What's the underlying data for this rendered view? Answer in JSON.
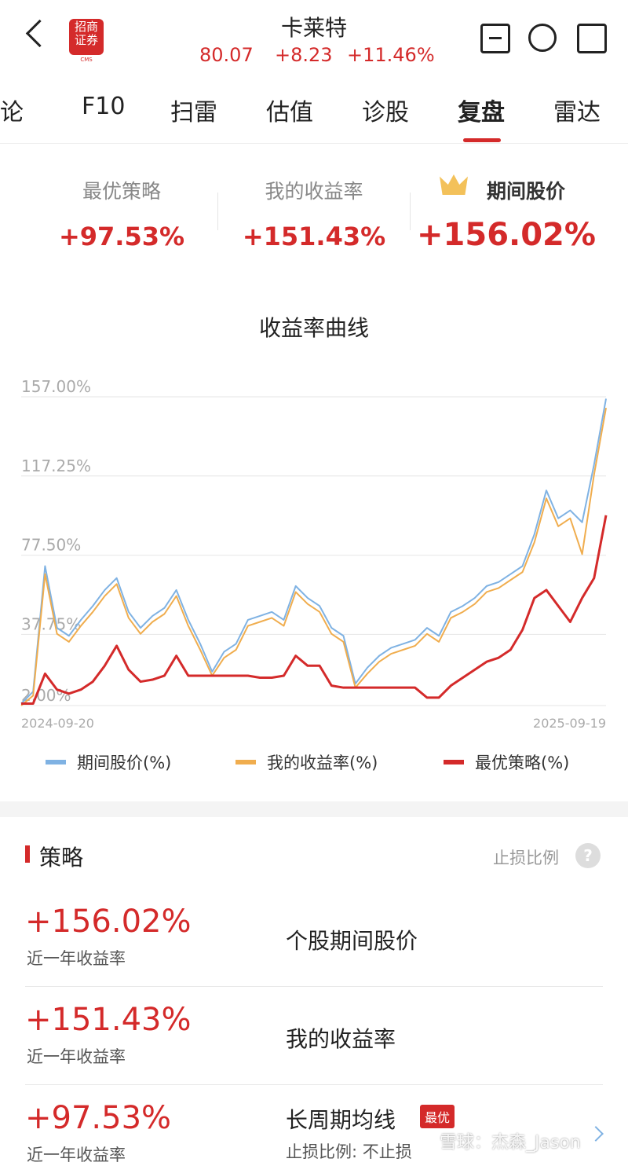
{
  "header": {
    "logo": "招商证券",
    "logo_sub": "CMS",
    "title": "卡莱特",
    "price": "80.07",
    "change": "+8.23",
    "change_pct": "+11.46%"
  },
  "tabs": [
    "讨论",
    "F10",
    "扫雷",
    "估值",
    "诊股",
    "复盘",
    "雷达"
  ],
  "summary": [
    {
      "label": "最优策略",
      "value": "+97.53%"
    },
    {
      "label": "我的收益率",
      "value": "+151.43%"
    },
    {
      "label": "期间股价",
      "value": "+156.02%"
    }
  ],
  "chart_data": {
    "type": "line",
    "title": "收益率曲线",
    "categories": [
      "2024-09-20",
      null,
      null,
      null,
      null,
      null,
      null,
      null,
      null,
      null,
      null,
      null,
      null,
      null,
      null,
      null,
      null,
      null,
      null,
      null,
      null,
      null,
      null,
      null,
      null,
      null,
      null,
      null,
      null,
      null,
      null,
      null,
      null,
      null,
      null,
      null,
      null,
      null,
      null,
      null,
      null,
      null,
      null,
      null,
      null,
      null,
      null,
      null,
      null,
      "2025-09-19"
    ],
    "series": [
      {
        "name": "期间股价(%)",
        "color": "#7fb2e3",
        "values": [
          3,
          9,
          72,
          41,
          37,
          45,
          52,
          60,
          66,
          49,
          41,
          47,
          51,
          60,
          45,
          33,
          19,
          29,
          33,
          45,
          47,
          49,
          45,
          62,
          56,
          52,
          41,
          37,
          13,
          21,
          27,
          31,
          33,
          35,
          41,
          37,
          49,
          52,
          56,
          62,
          64,
          68,
          72,
          88,
          110,
          96,
          100,
          94,
          123,
          156.02
        ]
      },
      {
        "name": "我的收益率(%)",
        "color": "#f0ad4e",
        "values": [
          2,
          7,
          68,
          38,
          34,
          42,
          49,
          57,
          63,
          46,
          38,
          44,
          48,
          57,
          42,
          30,
          17,
          26,
          30,
          42,
          44,
          46,
          42,
          59,
          53,
          49,
          38,
          34,
          11,
          18,
          24,
          28,
          30,
          32,
          38,
          34,
          46,
          49,
          53,
          59,
          61,
          65,
          69,
          84,
          106,
          92,
          96,
          78,
          118,
          151.43
        ]
      },
      {
        "name": "最优策略(%)",
        "color": "#d42a2a",
        "values": [
          3,
          3,
          18,
          10,
          8,
          10,
          14,
          22,
          32,
          20,
          14,
          15,
          17,
          27,
          17,
          17,
          17,
          17,
          17,
          17,
          16,
          16,
          17,
          27,
          22,
          22,
          12,
          11,
          11,
          11,
          11,
          11,
          11,
          11,
          6,
          6,
          12,
          16,
          20,
          24,
          26,
          30,
          40,
          56,
          60,
          52,
          44,
          56,
          66,
          97.53
        ]
      }
    ],
    "ylim": [
      2,
      157
    ],
    "yticks": [
      {
        "value": 2,
        "label": "2.00%"
      },
      {
        "value": 37.75,
        "label": "37.75%"
      },
      {
        "value": 77.5,
        "label": "77.50%"
      },
      {
        "value": 117.25,
        "label": "117.25%"
      },
      {
        "value": 157,
        "label": "157.00%"
      }
    ],
    "grid": true,
    "legend": "bottom"
  },
  "strategy": {
    "title": "策略",
    "stop_loss": "止损比例",
    "help": "?",
    "rows": [
      {
        "value": "+156.02%",
        "sub": "近一年收益率",
        "name": "个股期间股价"
      },
      {
        "value": "+151.43%",
        "sub": "近一年收益率",
        "name": "我的收益率"
      },
      {
        "value": "+97.53%",
        "sub": "近一年收益率",
        "name": "长周期均线",
        "badge": "最优",
        "detail": "止损比例: 不止损"
      }
    ]
  },
  "watermark": "雪球：杰森_Jason"
}
